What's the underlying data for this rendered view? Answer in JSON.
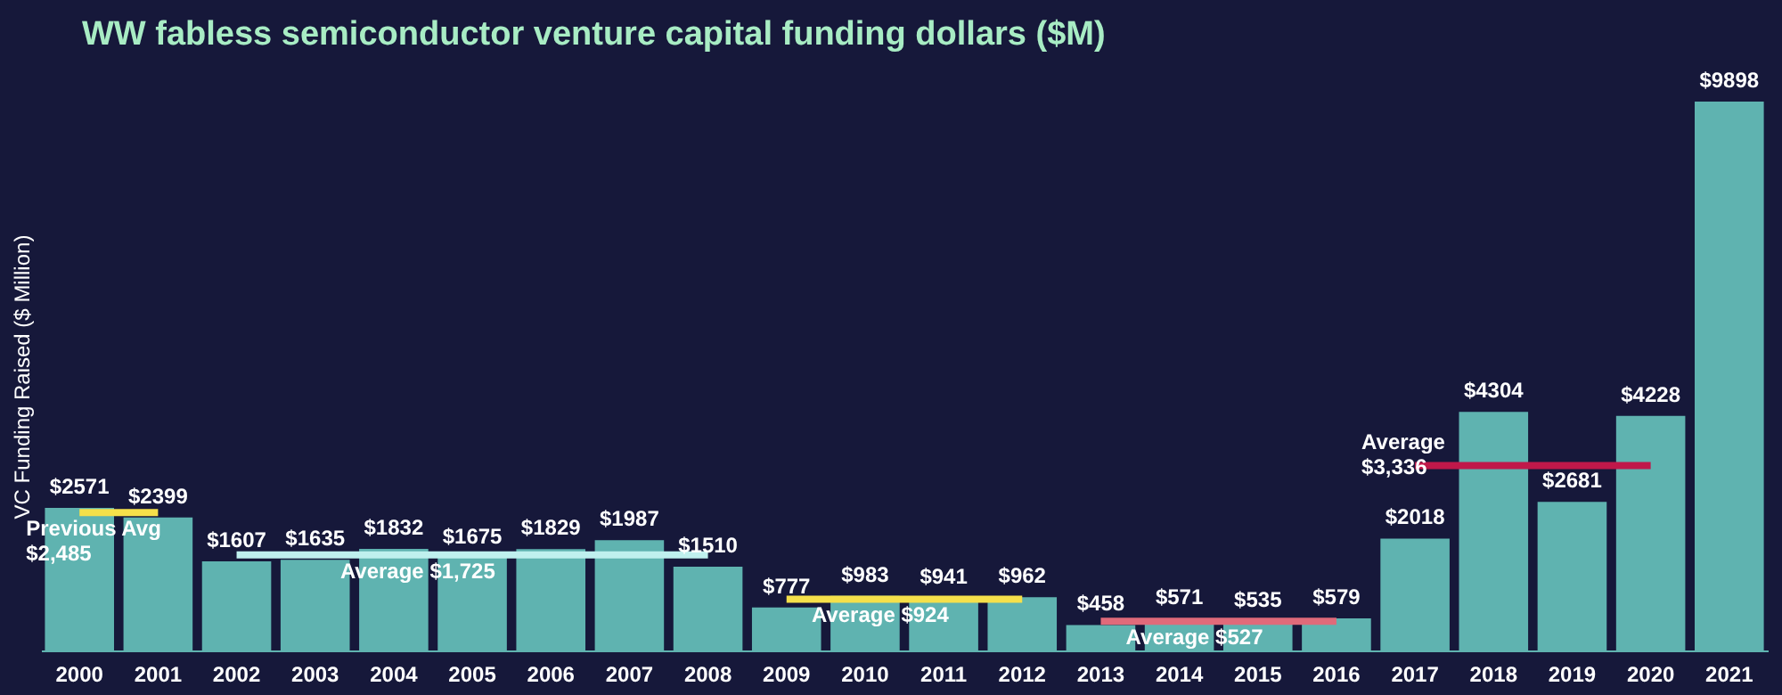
{
  "chart_data": {
    "type": "bar",
    "title": "WW fabless semiconductor venture capital funding dollars ($M)",
    "ylabel": "VC Funding Raised ($ Million)",
    "tick_labels": "x",
    "grid": false,
    "categories": [
      "2000",
      "2001",
      "2002",
      "2003",
      "2004",
      "2005",
      "2006",
      "2007",
      "2008",
      "2009",
      "2010",
      "2011",
      "2012",
      "2013",
      "2014",
      "2015",
      "2016",
      "2017",
      "2018",
      "2019",
      "2020",
      "2021"
    ],
    "series": [
      {
        "color": "#5fb3b0",
        "values": [
          2571,
          2399,
          1607,
          1635,
          1832,
          1675,
          1829,
          1987,
          1510,
          777,
          983,
          941,
          962,
          458,
          571,
          535,
          579,
          2018,
          4304,
          2681,
          4228,
          9898
        ],
        "value_labels": [
          "$2571",
          "$2399",
          "$1607",
          "$1635",
          "$1832",
          "$1675",
          "$1829",
          "$1987",
          "$1510",
          "$777",
          "$983",
          "$941",
          "$962",
          "$458",
          "$571",
          "$535",
          "$579",
          "$2018",
          "$4304",
          "$2681",
          "$4228",
          "$9898"
        ]
      },
      {
        "type": "line",
        "color": "#f5e04a",
        "values": [
          2485,
          2485,
          null,
          null,
          null,
          null,
          null,
          null,
          null,
          null,
          null,
          null,
          null,
          null,
          null,
          null,
          null,
          null,
          null,
          null,
          null,
          null
        ]
      },
      {
        "type": "line",
        "color": "#bff0ee",
        "values": [
          null,
          null,
          1725,
          1725,
          1725,
          1725,
          1725,
          1725,
          1725,
          null,
          null,
          null,
          null,
          null,
          null,
          null,
          null,
          null,
          null,
          null,
          null,
          null
        ]
      },
      {
        "type": "line",
        "color": "#f5e04a",
        "values": [
          null,
          null,
          null,
          null,
          null,
          null,
          null,
          null,
          null,
          924,
          924,
          924,
          924,
          null,
          null,
          null,
          null,
          null,
          null,
          null,
          null,
          null
        ]
      },
      {
        "type": "line",
        "color": "#e06a7a",
        "values": [
          null,
          null,
          null,
          null,
          null,
          null,
          null,
          null,
          null,
          null,
          null,
          null,
          null,
          527,
          527,
          527,
          527,
          null,
          null,
          null,
          null,
          null
        ]
      },
      {
        "type": "line",
        "color": "#c0184a",
        "values": [
          null,
          null,
          null,
          null,
          null,
          null,
          null,
          null,
          null,
          null,
          null,
          null,
          null,
          null,
          null,
          null,
          null,
          3336,
          3336,
          3336,
          3336,
          null
        ]
      }
    ],
    "annotations": [
      {
        "text": "Previous Avg\n$2,485",
        "x": "2000",
        "y": 2485
      },
      {
        "text": "Average $1,725",
        "x": "2004",
        "y": 1725
      },
      {
        "text": "Average $924",
        "x": "2010",
        "y": 924
      },
      {
        "text": "Average $527",
        "x": "2014",
        "y": 527
      },
      {
        "text": "Average\n$3,336",
        "x": "2017",
        "y": 3336
      }
    ]
  }
}
